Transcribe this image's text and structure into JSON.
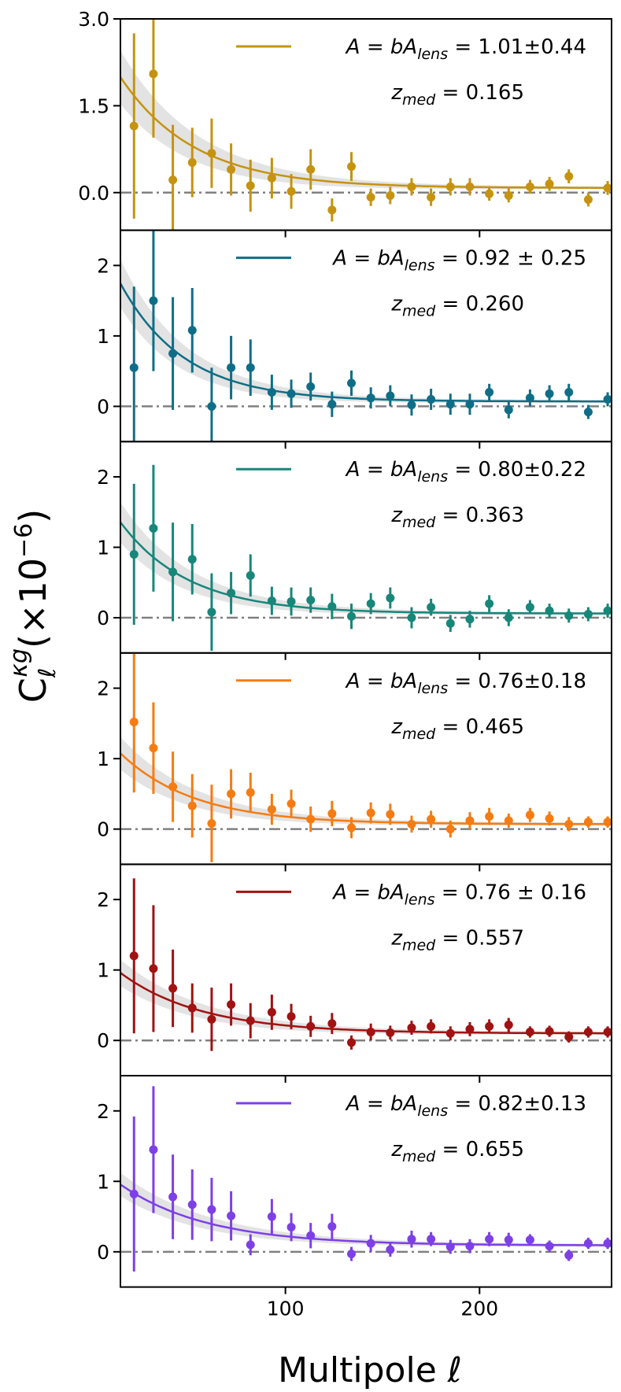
{
  "chart_data": {
    "type": "scatter",
    "xlabel": "Multipole ℓ",
    "ylabel": "C_ℓ^κg(×10⁻⁶)",
    "ylabel_base": "C",
    "ylabel_sub": "ℓ",
    "ylabel_sup": "κg",
    "ylabel_factor": "(×10",
    "ylabel_exp": "−6",
    "ylabel_close": ")",
    "xlim": [
      15,
      268
    ],
    "xticks": [
      100,
      200
    ],
    "x": [
      22,
      32,
      42,
      52,
      62,
      72,
      82,
      93,
      103,
      113,
      124,
      134,
      144,
      154,
      165,
      175,
      185,
      195,
      205,
      215,
      226,
      236,
      246,
      256,
      266
    ],
    "panels": [
      {
        "name": "bin1",
        "color": "#c5930f",
        "ylim": [
          -0.65,
          3.0
        ],
        "yticks": [
          0.0,
          1.5,
          3.0
        ],
        "ytick_labels": [
          "0.0",
          "1.5",
          "3.0"
        ],
        "legend_label": "A = bA",
        "legend_sub": "lens",
        "legend_value": " = 1.01±0.44",
        "z_label": "z",
        "z_sub": "med",
        "z_value": " = 0.165",
        "show_legend_line": true,
        "values": [
          1.15,
          2.05,
          0.22,
          0.52,
          0.68,
          0.4,
          0.12,
          0.25,
          0.02,
          0.4,
          -0.3,
          0.45,
          -0.08,
          -0.05,
          0.1,
          -0.08,
          0.1,
          0.1,
          -0.02,
          -0.05,
          0.1,
          0.15,
          0.28,
          -0.12,
          0.08
        ],
        "errors": [
          1.6,
          1.1,
          0.95,
          0.6,
          0.6,
          0.45,
          0.45,
          0.35,
          0.3,
          0.35,
          0.2,
          0.25,
          0.15,
          0.15,
          0.15,
          0.15,
          0.15,
          0.15,
          0.12,
          0.12,
          0.12,
          0.12,
          0.12,
          0.12,
          0.12
        ],
        "model_peak": 1.85,
        "model_tail": 0.08,
        "model_scale": 38,
        "band_width": 0.42
      },
      {
        "name": "bin2",
        "color": "#0f6e87",
        "ylim": [
          -0.5,
          2.5
        ],
        "yticks": [
          0,
          1,
          2
        ],
        "ytick_labels": [
          "0",
          "1",
          "2"
        ],
        "legend_label": "A = bA",
        "legend_sub": "lens",
        "legend_value": " = 0.92 ± 0.25",
        "z_label": "z",
        "z_sub": "med",
        "z_value": " = 0.260",
        "show_legend_line": true,
        "values": [
          0.55,
          1.5,
          0.75,
          1.08,
          0.0,
          0.55,
          0.55,
          0.2,
          0.18,
          0.28,
          0.03,
          0.33,
          0.12,
          0.15,
          0.02,
          0.1,
          0.03,
          0.03,
          0.2,
          -0.05,
          0.12,
          0.18,
          0.2,
          -0.08,
          0.1
        ],
        "errors": [
          1.15,
          1.0,
          0.8,
          0.6,
          0.55,
          0.45,
          0.4,
          0.25,
          0.2,
          0.2,
          0.18,
          0.18,
          0.15,
          0.15,
          0.15,
          0.15,
          0.15,
          0.15,
          0.12,
          0.12,
          0.12,
          0.12,
          0.12,
          0.1,
          0.1
        ],
        "model_peak": 1.6,
        "model_tail": 0.07,
        "model_scale": 33,
        "band_width": 0.3
      },
      {
        "name": "bin3",
        "color": "#17877a",
        "ylim": [
          -0.5,
          2.5
        ],
        "yticks": [
          0,
          1,
          2
        ],
        "ytick_labels": [
          "0",
          "1",
          "2"
        ],
        "legend_label": "A = bA",
        "legend_sub": "lens",
        "legend_value": " = 0.80±0.22",
        "z_label": "z",
        "z_sub": "med",
        "z_value": " = 0.363",
        "show_legend_line": true,
        "values": [
          0.9,
          1.27,
          0.65,
          0.83,
          0.08,
          0.35,
          0.6,
          0.24,
          0.23,
          0.25,
          0.16,
          0.02,
          0.2,
          0.28,
          0.0,
          0.15,
          -0.08,
          -0.02,
          0.2,
          0.0,
          0.15,
          0.1,
          0.03,
          0.05,
          0.1
        ],
        "errors": [
          1.0,
          0.9,
          0.7,
          0.5,
          0.55,
          0.3,
          0.3,
          0.2,
          0.2,
          0.18,
          0.18,
          0.18,
          0.15,
          0.15,
          0.15,
          0.12,
          0.12,
          0.12,
          0.12,
          0.12,
          0.1,
          0.1,
          0.1,
          0.1,
          0.1
        ],
        "model_peak": 1.25,
        "model_tail": 0.06,
        "model_scale": 35,
        "band_width": 0.25
      },
      {
        "name": "bin4",
        "color": "#f57c12",
        "ylim": [
          -0.5,
          2.5
        ],
        "yticks": [
          0,
          1,
          2
        ],
        "ytick_labels": [
          "0",
          "1",
          "2"
        ],
        "legend_label": "A = bA",
        "legend_sub": "lens",
        "legend_value": " = 0.76±0.18",
        "z_label": "z",
        "z_sub": "med",
        "z_value": " = 0.465",
        "show_legend_line": true,
        "values": [
          1.52,
          1.15,
          0.6,
          0.33,
          0.08,
          0.5,
          0.52,
          0.28,
          0.36,
          0.14,
          0.22,
          0.02,
          0.23,
          0.21,
          0.07,
          0.14,
          0.0,
          0.12,
          0.18,
          0.12,
          0.2,
          0.15,
          0.07,
          0.1,
          0.1
        ],
        "errors": [
          1.0,
          0.65,
          0.5,
          0.45,
          0.55,
          0.35,
          0.28,
          0.22,
          0.2,
          0.18,
          0.18,
          0.15,
          0.15,
          0.15,
          0.12,
          0.12,
          0.12,
          0.12,
          0.12,
          0.1,
          0.1,
          0.1,
          0.1,
          0.08,
          0.08
        ],
        "model_peak": 1.0,
        "model_tail": 0.07,
        "model_scale": 38,
        "band_width": 0.2
      },
      {
        "name": "bin5",
        "color": "#a11212",
        "ylim": [
          -0.5,
          2.5
        ],
        "yticks": [
          0,
          1,
          2
        ],
        "ytick_labels": [
          "0",
          "1",
          "2"
        ],
        "legend_label": "A = bA",
        "legend_sub": "lens",
        "legend_value": " = 0.76 ± 0.16",
        "z_label": "z",
        "z_sub": "med",
        "z_value": " = 0.557",
        "show_legend_line": true,
        "values": [
          1.2,
          1.02,
          0.74,
          0.46,
          0.3,
          0.51,
          0.28,
          0.4,
          0.34,
          0.2,
          0.24,
          -0.03,
          0.12,
          0.11,
          0.18,
          0.2,
          0.1,
          0.16,
          0.2,
          0.22,
          0.12,
          0.13,
          0.05,
          0.12,
          0.12
        ],
        "errors": [
          1.1,
          0.9,
          0.55,
          0.35,
          0.45,
          0.3,
          0.25,
          0.25,
          0.18,
          0.15,
          0.15,
          0.1,
          0.12,
          0.1,
          0.1,
          0.1,
          0.1,
          0.1,
          0.1,
          0.1,
          0.08,
          0.08,
          0.08,
          0.08,
          0.08
        ],
        "model_peak": 0.9,
        "model_tail": 0.1,
        "model_scale": 42,
        "band_width": 0.16
      },
      {
        "name": "bin6",
        "color": "#7d40e6",
        "ylim": [
          -0.5,
          2.5
        ],
        "yticks": [
          0,
          1,
          2
        ],
        "ytick_labels": [
          "0",
          "1",
          "2"
        ],
        "legend_label": "A = bA",
        "legend_sub": "lens",
        "legend_value": " = 0.82±0.13",
        "z_label": "z",
        "z_sub": "med",
        "z_value": " = 0.655",
        "show_legend_line": true,
        "values": [
          0.82,
          1.45,
          0.78,
          0.67,
          0.6,
          0.51,
          0.1,
          0.5,
          0.35,
          0.23,
          0.36,
          -0.03,
          0.12,
          0.03,
          0.18,
          0.18,
          0.07,
          0.08,
          0.18,
          0.17,
          0.17,
          0.08,
          -0.05,
          0.12,
          0.12
        ],
        "errors": [
          1.1,
          0.9,
          0.6,
          0.5,
          0.45,
          0.35,
          0.15,
          0.25,
          0.2,
          0.18,
          0.18,
          0.1,
          0.12,
          0.1,
          0.12,
          0.1,
          0.1,
          0.1,
          0.1,
          0.1,
          0.08,
          0.08,
          0.08,
          0.08,
          0.08
        ],
        "model_peak": 0.9,
        "model_tail": 0.09,
        "model_scale": 45,
        "band_width": 0.14
      }
    ]
  }
}
